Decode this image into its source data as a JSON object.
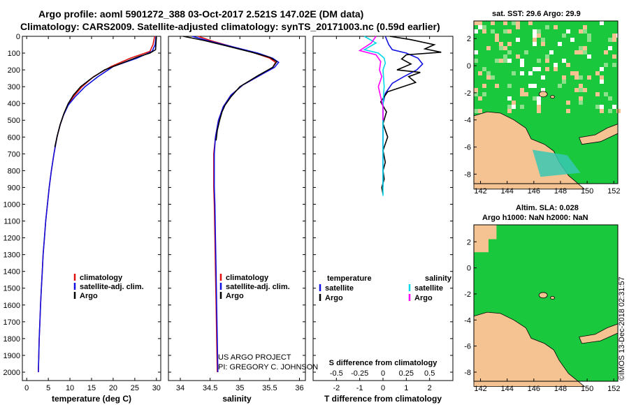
{
  "header": {
    "title_line1": "Argo profile: aoml 5901272_388 03-Oct-2017 2.521S 147.02E (DM data)",
    "title_line2": "Climatology: CARS2009. Satellite-adjusted climatology: synTS_20171003.nc (0.59d earlier)"
  },
  "sst_panel": {
    "title": "sat. SST: 29.6 Argo: 29.9",
    "x_ticks": [
      "142",
      "144",
      "146",
      "148",
      "150",
      "152"
    ],
    "y_ticks": [
      "2",
      "0",
      "-2",
      "-4",
      "-6",
      "-8"
    ]
  },
  "sla_panel": {
    "title_line1": "Altim. SLA: 0.028",
    "title_line2": "Argo h1000: NaN h2000: NaN",
    "x_ticks": [
      "142",
      "144",
      "146",
      "148",
      "150",
      "152"
    ],
    "y_ticks": [
      "2",
      "0",
      "-2",
      "-4",
      "-6",
      "-8"
    ]
  },
  "footer": {
    "project_line1": "US ARGO PROJECT",
    "project_line2": "PI: GREGORY C. JOHNSON",
    "imos_stamp": "©IMOS 13-Dec-2018 02:31:57"
  },
  "colors": {
    "climatology": "#e01010",
    "satellite": "#1010e0",
    "argo": "#000000",
    "sal_satellite": "#00d8e8",
    "sal_argo": "#ff00ff",
    "land": "#f5c391",
    "ocean": "#19c83c",
    "ocean_light": "#8ce08c"
  },
  "chart_data": [
    {
      "type": "line",
      "panel": "temperature",
      "xlabel": "temperature (deg C)",
      "ylabel": "",
      "xlim": [
        -1,
        31
      ],
      "ylim": [
        0,
        2050
      ],
      "x_ticks": [
        0,
        5,
        10,
        15,
        20,
        25,
        30
      ],
      "y_ticks": [
        0,
        100,
        200,
        300,
        400,
        500,
        600,
        700,
        800,
        900,
        1000,
        1100,
        1200,
        1300,
        1400,
        1500,
        1600,
        1700,
        1800,
        1900,
        2000
      ],
      "legend": [
        "climatology",
        "satellite-adj. clim.",
        "Argo"
      ],
      "series": [
        {
          "name": "climatology",
          "points": [
            [
              29.6,
              0
            ],
            [
              29.2,
              50
            ],
            [
              28.5,
              90
            ],
            [
              24,
              130
            ],
            [
              19.5,
              180
            ],
            [
              15.5,
              240
            ],
            [
              12.8,
              300
            ],
            [
              10.8,
              360
            ],
            [
              9.5,
              410
            ],
            [
              8.5,
              470
            ],
            [
              7.7,
              530
            ],
            [
              7.0,
              600
            ],
            [
              6.3,
              700
            ],
            [
              5.7,
              800
            ],
            [
              5.2,
              900
            ],
            [
              4.8,
              1000
            ],
            [
              4.4,
              1100
            ],
            [
              4.1,
              1200
            ],
            [
              3.8,
              1300
            ],
            [
              3.6,
              1400
            ],
            [
              3.4,
              1500
            ],
            [
              3.2,
              1600
            ],
            [
              3.05,
              1700
            ],
            [
              2.9,
              1800
            ],
            [
              2.8,
              1900
            ],
            [
              2.7,
              2000
            ]
          ]
        },
        {
          "name": "satellite-adj. clim.",
          "points": [
            [
              29.9,
              0
            ],
            [
              29.7,
              50
            ],
            [
              29.0,
              90
            ],
            [
              25.5,
              130
            ],
            [
              20,
              180
            ],
            [
              16.5,
              240
            ],
            [
              13.5,
              300
            ],
            [
              11.2,
              360
            ],
            [
              9.6,
              410
            ],
            [
              8.5,
              470
            ],
            [
              7.7,
              530
            ],
            [
              7.0,
              600
            ],
            [
              6.3,
              700
            ],
            [
              5.7,
              800
            ],
            [
              5.2,
              900
            ],
            [
              4.8,
              1000
            ],
            [
              4.4,
              1100
            ],
            [
              4.1,
              1200
            ],
            [
              3.8,
              1300
            ],
            [
              3.6,
              1400
            ],
            [
              3.4,
              1500
            ],
            [
              3.2,
              1600
            ],
            [
              3.05,
              1700
            ],
            [
              2.9,
              1800
            ],
            [
              2.8,
              1900
            ],
            [
              2.7,
              2000
            ]
          ]
        },
        {
          "name": "Argo",
          "points": [
            [
              30.0,
              0
            ],
            [
              29.9,
              40
            ],
            [
              29.8,
              80
            ],
            [
              28.5,
              100
            ],
            [
              26,
              120
            ],
            [
              22,
              160
            ],
            [
              18,
              200
            ],
            [
              15,
              250
            ],
            [
              12.5,
              300
            ],
            [
              10.8,
              350
            ],
            [
              9.6,
              400
            ],
            [
              8.6,
              460
            ],
            [
              7.8,
              520
            ],
            [
              7.1,
              590
            ],
            [
              6.5,
              660
            ]
          ]
        }
      ]
    },
    {
      "type": "line",
      "panel": "salinity",
      "xlabel": "salinity",
      "xlim": [
        33.8,
        36.1
      ],
      "ylim": [
        0,
        2050
      ],
      "x_ticks": [
        34,
        34.5,
        35,
        35.5,
        36
      ],
      "legend": [
        "climatology",
        "satellite-adj. clim.",
        "Argo"
      ],
      "series": [
        {
          "name": "climatology",
          "points": [
            [
              34.3,
              0
            ],
            [
              34.55,
              30
            ],
            [
              34.85,
              60
            ],
            [
              35.25,
              100
            ],
            [
              35.5,
              130
            ],
            [
              35.6,
              155
            ],
            [
              35.55,
              185
            ],
            [
              35.35,
              230
            ],
            [
              35.05,
              290
            ],
            [
              34.85,
              350
            ],
            [
              34.72,
              420
            ],
            [
              34.64,
              500
            ],
            [
              34.59,
              600
            ],
            [
              34.56,
              700
            ],
            [
              34.56,
              800
            ],
            [
              34.56,
              900
            ],
            [
              34.57,
              1000
            ],
            [
              34.58,
              1200
            ],
            [
              34.59,
              1400
            ],
            [
              34.6,
              1600
            ],
            [
              34.61,
              1800
            ],
            [
              34.62,
              2000
            ]
          ]
        },
        {
          "name": "satellite-adj. clim.",
          "points": [
            [
              34.2,
              0
            ],
            [
              34.5,
              30
            ],
            [
              34.85,
              60
            ],
            [
              35.3,
              100
            ],
            [
              35.55,
              130
            ],
            [
              35.65,
              155
            ],
            [
              35.58,
              185
            ],
            [
              35.35,
              230
            ],
            [
              35.05,
              290
            ],
            [
              34.85,
              350
            ],
            [
              34.72,
              420
            ],
            [
              34.64,
              500
            ],
            [
              34.59,
              600
            ],
            [
              34.57,
              700
            ],
            [
              34.57,
              800
            ],
            [
              34.57,
              900
            ],
            [
              34.58,
              1000
            ],
            [
              34.59,
              1200
            ],
            [
              34.6,
              1400
            ],
            [
              34.61,
              1600
            ],
            [
              34.62,
              1800
            ],
            [
              34.63,
              2000
            ]
          ]
        },
        {
          "name": "Argo",
          "points": [
            [
              34.05,
              0
            ],
            [
              34.4,
              25
            ],
            [
              34.75,
              55
            ],
            [
              35.2,
              95
            ],
            [
              35.5,
              125
            ],
            [
              35.62,
              150
            ],
            [
              35.55,
              185
            ],
            [
              35.3,
              235
            ],
            [
              35.0,
              300
            ],
            [
              34.85,
              360
            ],
            [
              34.75,
              410
            ],
            [
              34.7,
              450
            ],
            [
              34.66,
              500
            ],
            [
              34.62,
              560
            ],
            [
              34.6,
              620
            ]
          ]
        }
      ]
    },
    {
      "type": "line",
      "panel": "difference",
      "xlabel": "T difference from climatology",
      "top_label": "S difference from climatology",
      "xlim": [
        -3,
        3
      ],
      "ylim": [
        0,
        2050
      ],
      "x_ticks": [
        -2,
        -1,
        0,
        1,
        2
      ],
      "top_ticks": [
        "-0.5",
        "-0.25",
        "0",
        "0.25",
        "0.5"
      ],
      "legend_headers": [
        "temperature",
        "salinity"
      ],
      "legend": [
        "satellite",
        "Argo",
        "satellite",
        "Argo"
      ],
      "series": [
        {
          "name": "temperature satellite",
          "points": [
            [
              0.1,
              0
            ],
            [
              0.25,
              50
            ],
            [
              0.4,
              80
            ],
            [
              1.0,
              100
            ],
            [
              1.5,
              130
            ],
            [
              1.7,
              165
            ],
            [
              1.45,
              200
            ],
            [
              0.9,
              240
            ],
            [
              0.4,
              280
            ],
            [
              0.1,
              340
            ],
            [
              0.0,
              400
            ],
            [
              0.0,
              500
            ],
            [
              0.0,
              700
            ],
            [
              0.0,
              900
            ]
          ]
        },
        {
          "name": "temperature Argo",
          "points": [
            [
              0.3,
              0
            ],
            [
              1.2,
              20
            ],
            [
              2.2,
              50
            ],
            [
              1.8,
              75
            ],
            [
              2.5,
              95
            ],
            [
              1.0,
              110
            ],
            [
              0.8,
              135
            ],
            [
              1.2,
              165
            ],
            [
              0.6,
              200
            ],
            [
              1.6,
              215
            ],
            [
              1.1,
              240
            ],
            [
              1.4,
              275
            ],
            [
              0.2,
              330
            ],
            [
              -0.1,
              390
            ],
            [
              0.15,
              450
            ],
            [
              0.0,
              520
            ],
            [
              0.2,
              600
            ],
            [
              0.0,
              680
            ],
            [
              0.1,
              750
            ],
            [
              0.0,
              800
            ],
            [
              0.05,
              850
            ],
            [
              -0.05,
              900
            ],
            [
              0.0,
              940
            ]
          ]
        },
        {
          "name": "salinity satellite",
          "points": [
            [
              -0.8,
              0
            ],
            [
              -0.3,
              40
            ],
            [
              -0.8,
              80
            ],
            [
              -0.2,
              100
            ],
            [
              0.05,
              130
            ],
            [
              0.1,
              160
            ],
            [
              0.0,
              200
            ],
            [
              0.05,
              300
            ],
            [
              0.0,
              400
            ],
            [
              0.0,
              600
            ],
            [
              0.0,
              800
            ],
            [
              0.0,
              950
            ]
          ]
        },
        {
          "name": "salinity Argo",
          "points": [
            [
              -0.3,
              0
            ],
            [
              -0.5,
              40
            ],
            [
              -1.0,
              85
            ],
            [
              -0.3,
              110
            ],
            [
              -0.1,
              150
            ],
            [
              -0.15,
              200
            ],
            [
              -0.05,
              240
            ],
            [
              -0.2,
              300
            ],
            [
              -0.1,
              360
            ],
            [
              0.0,
              420
            ],
            [
              0.0,
              500
            ]
          ]
        }
      ]
    }
  ]
}
